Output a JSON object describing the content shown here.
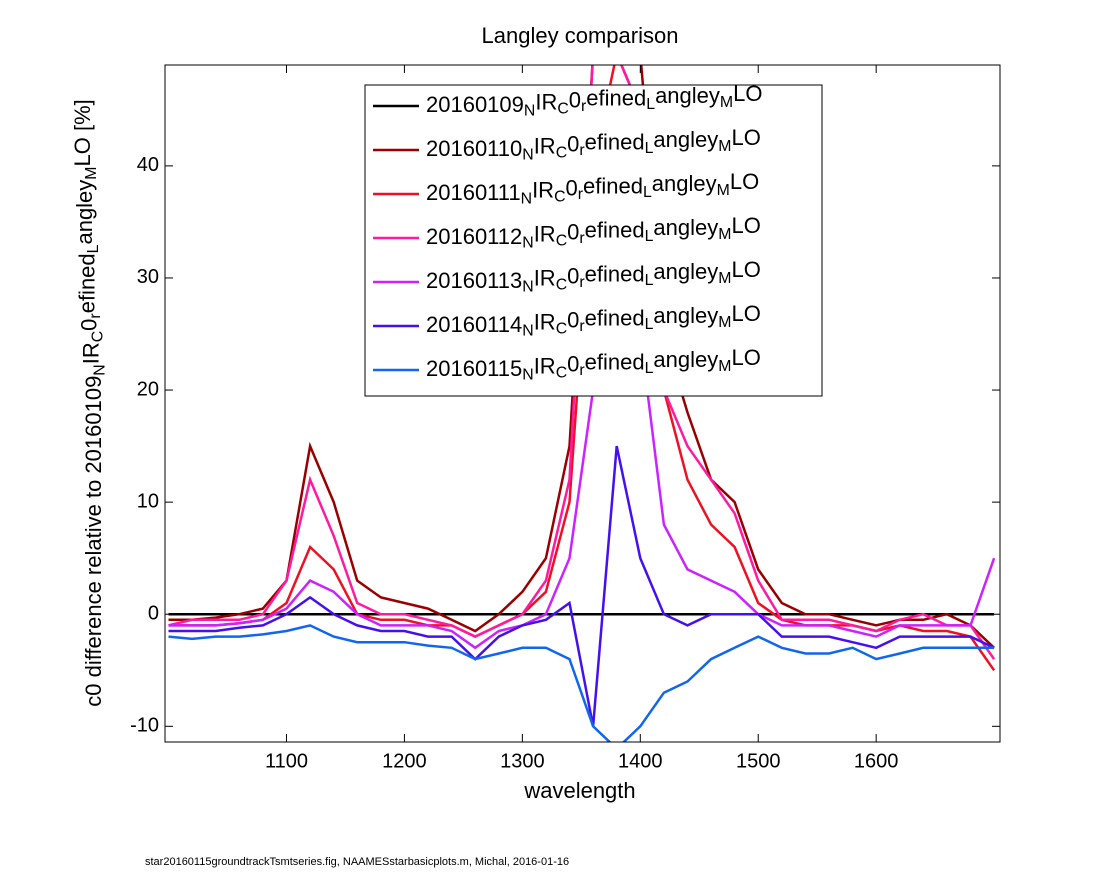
{
  "chart_data": {
    "type": "line",
    "title": "Langley comparison",
    "x_label": "wavelength",
    "y_label": "c0 difference relative to 20160109_NIR_C0_refined_Langley_MLO [%]",
    "footnote": "star20160115groundtrackTsmtseries.fig, NAAMESstarbasicplots.m, Michal, 2016-01-16",
    "xlim": [
      997,
      1705
    ],
    "ylim": [
      -11.4,
      49
    ],
    "xticks": [
      1100,
      1200,
      1300,
      1400,
      1500,
      1600
    ],
    "yticks": [
      -10,
      0,
      10,
      20,
      30,
      40
    ],
    "legend_position": "upper center",
    "x": [
      1000,
      1020,
      1040,
      1060,
      1080,
      1100,
      1120,
      1140,
      1160,
      1180,
      1200,
      1220,
      1240,
      1260,
      1280,
      1300,
      1320,
      1340,
      1360,
      1380,
      1400,
      1420,
      1440,
      1460,
      1480,
      1500,
      1520,
      1540,
      1560,
      1580,
      1600,
      1620,
      1640,
      1660,
      1680,
      1700
    ],
    "series": [
      {
        "name": "20160109_NIR_C0_refined_Langley_MLO",
        "color": "#000000",
        "values": [
          0,
          0,
          0,
          0,
          0,
          0,
          0,
          0,
          0,
          0,
          0,
          0,
          0,
          0,
          0,
          0,
          0,
          0,
          0,
          0,
          0,
          0,
          0,
          0,
          0,
          0,
          0,
          0,
          0,
          0,
          0,
          0,
          0,
          0,
          0,
          0
        ]
      },
      {
        "name": "20160110_NIR_C0_refined_Langley_MLO",
        "color": "#990000",
        "values": [
          -0.5,
          -0.5,
          -0.3,
          0,
          0.5,
          3,
          15,
          10,
          3,
          1.5,
          1,
          0.5,
          -0.5,
          -1.5,
          0,
          2,
          5,
          15,
          50,
          50,
          50,
          25,
          18,
          12,
          10,
          4,
          1,
          0,
          0,
          -0.5,
          -1,
          -0.5,
          -0.5,
          0,
          -1,
          -3
        ]
      },
      {
        "name": "20160111_NIR_C0_refined_Langley_MLO",
        "color": "#ee1122",
        "values": [
          -1,
          -1,
          -1,
          -0.8,
          -0.5,
          1,
          6,
          4,
          0,
          -0.5,
          -0.5,
          -1,
          -1,
          -2,
          -1,
          0,
          2,
          10,
          40,
          50,
          45,
          20,
          12,
          8,
          6,
          1,
          -0.5,
          -1,
          -1,
          -1,
          -1.5,
          -1,
          -1.5,
          -1.5,
          -2,
          -5
        ]
      },
      {
        "name": "20160112_NIR_C0_refined_Langley_MLO",
        "color": "#ff1aa0",
        "values": [
          -1,
          -0.5,
          -0.5,
          -0.5,
          0,
          3,
          12,
          7,
          1,
          0,
          0,
          -0.5,
          -1,
          -2,
          -1,
          0,
          3,
          12,
          50,
          50,
          45,
          20,
          15,
          12,
          9,
          3,
          -0.5,
          -0.5,
          -0.5,
          -1,
          -1.5,
          -0.5,
          0,
          -1,
          -1,
          -4
        ]
      },
      {
        "name": "20160113_NIR_C0_refined_Langley_MLO",
        "color": "#cc22ff",
        "values": [
          -1,
          -1,
          -1,
          -0.8,
          -0.5,
          0.5,
          3,
          2,
          0,
          -1,
          -1,
          -1,
          -1.5,
          -3,
          -1.5,
          -1,
          0,
          5,
          20,
          30,
          25,
          8,
          4,
          3,
          2,
          0,
          -1,
          -1,
          -1,
          -1.5,
          -2,
          -1,
          -1,
          -1,
          -1,
          5
        ]
      },
      {
        "name": "20160114_NIR_C0_refined_Langley_MLO",
        "color": "#4411ee",
        "values": [
          -1.5,
          -1.5,
          -1.5,
          -1.2,
          -1,
          0,
          1.5,
          0,
          -1,
          -1.5,
          -1.5,
          -2,
          -2,
          -4,
          -2,
          -1,
          -0.5,
          1,
          -10,
          15,
          5,
          0,
          -1,
          0,
          0,
          0,
          -2,
          -2,
          -2,
          -2.5,
          -3,
          -2,
          -2,
          -2,
          -2,
          -3
        ]
      },
      {
        "name": "20160115_NIR_C0_refined_Langley_MLO",
        "color": "#1166ee",
        "values": [
          -2,
          -2.2,
          -2,
          -2,
          -1.8,
          -1.5,
          -1,
          -2,
          -2.5,
          -2.5,
          -2.5,
          -2.8,
          -3,
          -4,
          -3.5,
          -3,
          -3,
          -4,
          -10,
          -12,
          -10,
          -7,
          -6,
          -4,
          -3,
          -2,
          -3,
          -3.5,
          -3.5,
          -3,
          -4,
          -3.5,
          -3,
          -3,
          -3,
          -3
        ]
      }
    ]
  }
}
